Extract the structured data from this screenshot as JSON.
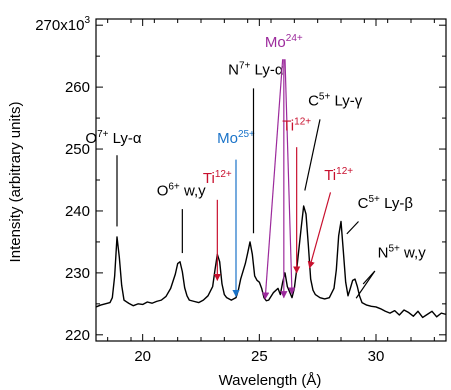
{
  "chart_data": {
    "type": "line",
    "title": "",
    "xlabel": "Wavelength (Å)",
    "ylabel": "Intensity (arbitrary units)",
    "xlim": [
      18.0,
      33.0
    ],
    "ylim": [
      219,
      271
    ],
    "grid": false,
    "legend": "none",
    "x_ticks": [
      20,
      25,
      30
    ],
    "x_tick_labels": [
      "20",
      "25",
      "30"
    ],
    "y_ticks": [
      220,
      230,
      240,
      250,
      260,
      270
    ],
    "y_tick_labels": [
      "220",
      "230",
      "240",
      "250",
      "260",
      "270x10"
    ],
    "y_tick_exponent": "3",
    "series": [
      {
        "color": "#000000",
        "x": [
          18.0,
          18.2,
          18.4,
          18.6,
          18.7,
          18.8,
          18.9,
          19.0,
          19.1,
          19.2,
          19.4,
          19.6,
          19.8,
          20.0,
          20.2,
          20.4,
          20.6,
          20.8,
          21.0,
          21.2,
          21.4,
          21.5,
          21.6,
          21.7,
          21.8,
          21.9,
          22.0,
          22.2,
          22.4,
          22.6,
          22.8,
          23.0,
          23.1,
          23.2,
          23.3,
          23.4,
          23.5,
          23.6,
          23.8,
          24.0,
          24.1,
          24.2,
          24.4,
          24.5,
          24.6,
          24.7,
          24.8,
          24.9,
          25.0,
          25.1,
          25.2,
          25.3,
          25.4,
          25.6,
          25.8,
          25.9,
          26.0,
          26.1,
          26.2,
          26.4,
          26.5,
          26.6,
          26.7,
          26.8,
          26.9,
          27.0,
          27.1,
          27.2,
          27.3,
          27.4,
          27.6,
          27.8,
          28.0,
          28.2,
          28.3,
          28.4,
          28.5,
          28.6,
          28.7,
          28.8,
          28.9,
          29.0,
          29.1,
          29.2,
          29.3,
          29.4,
          29.6,
          29.8,
          30.0,
          30.2,
          30.4,
          30.6,
          30.8,
          31.0,
          31.2,
          31.4,
          31.6,
          31.8,
          32.0,
          32.2,
          32.4,
          32.6,
          32.8,
          33.0
        ],
        "y": [
          224.5,
          224.8,
          225.0,
          225.2,
          226.0,
          229.5,
          235.8,
          232.5,
          228.0,
          225.6,
          225.1,
          224.7,
          225.0,
          224.9,
          225.3,
          225.1,
          225.4,
          225.6,
          226.2,
          227.5,
          229.8,
          231.5,
          231.8,
          230.2,
          227.6,
          226.3,
          225.6,
          225.4,
          225.2,
          225.6,
          226.3,
          227.8,
          230.5,
          233.0,
          231.8,
          228.2,
          226.5,
          226.0,
          225.6,
          226.0,
          227.2,
          229.0,
          231.5,
          233.2,
          235.0,
          233.0,
          229.5,
          228.8,
          228.5,
          227.5,
          226.0,
          225.5,
          225.6,
          226.8,
          227.5,
          226.5,
          228.5,
          230.0,
          227.8,
          226.0,
          227.5,
          230.5,
          234.0,
          237.5,
          240.8,
          239.5,
          234.5,
          229.0,
          227.2,
          226.5,
          226.0,
          225.8,
          226.0,
          227.5,
          230.5,
          236.0,
          238.3,
          233.5,
          228.5,
          226.3,
          227.5,
          228.8,
          229.0,
          227.8,
          226.2,
          225.2,
          224.8,
          224.6,
          224.5,
          224.2,
          223.8,
          223.5,
          223.9,
          223.2,
          224.0,
          223.6,
          223.0,
          223.8,
          222.8,
          223.3,
          223.8,
          222.9,
          223.5,
          223.3
        ]
      }
    ],
    "annotations": [
      {
        "label": "O",
        "sup": "7+",
        "rest": " Ly-α",
        "color": "#000000",
        "line_color": "#000000",
        "arrow": false,
        "text_x": 18.75,
        "text_y": 251.0,
        "x1": 18.9,
        "y1": 249.0,
        "x2": 18.9,
        "y2": 237.5
      },
      {
        "label": "O",
        "sup": "6+",
        "rest": " w,y",
        "color": "#000000",
        "line_color": "#000000",
        "arrow": false,
        "text_x": 21.65,
        "text_y": 242.5,
        "x1": 21.7,
        "y1": 240.3,
        "x2": 21.7,
        "y2": 233.2
      },
      {
        "label": "Ti",
        "sup": "12+",
        "rest": "",
        "color": "#c8102e",
        "line_color": "#c8102e",
        "arrow": true,
        "text_x": 23.2,
        "text_y": 244.5,
        "x1": 23.2,
        "y1": 241.8,
        "x2": 23.2,
        "y2": 228.8
      },
      {
        "label": "Mo",
        "sup": "25+",
        "rest": "",
        "color": "#1a73c8",
        "line_color": "#1a73c8",
        "arrow": true,
        "text_x": 24.0,
        "text_y": 251.0,
        "x1": 24.0,
        "y1": 248.3,
        "x2": 24.0,
        "y2": 226.2
      },
      {
        "label": "N",
        "sup": "7+",
        "rest": " Ly-α",
        "color": "#000000",
        "line_color": "#000000",
        "arrow": false,
        "text_x": 24.85,
        "text_y": 262.0,
        "x1": 24.75,
        "y1": 259.8,
        "x2": 24.75,
        "y2": 236.4
      },
      {
        "label": "Mo",
        "sup": "24+",
        "rest": "",
        "color": "#9c2a9c",
        "line_color": "#9c2a9c",
        "arrow": false,
        "text_x": 26.05,
        "text_y": 266.5,
        "x1": null,
        "y1": null,
        "x2": null,
        "y2": null
      },
      {
        "label": "",
        "sup": "",
        "rest": "",
        "color": "#9c2a9c",
        "line_color": "#9c2a9c",
        "arrow": true,
        "text_x": null,
        "text_y": null,
        "x1": 26.0,
        "y1": 264.5,
        "x2": 25.25,
        "y2": 225.8
      },
      {
        "label": "",
        "sup": "",
        "rest": "",
        "color": "#9c2a9c",
        "line_color": "#9c2a9c",
        "arrow": true,
        "text_x": null,
        "text_y": null,
        "x1": 26.05,
        "y1": 264.5,
        "x2": 26.05,
        "y2": 226.0
      },
      {
        "label": "",
        "sup": "",
        "rest": "",
        "color": "#9c2a9c",
        "line_color": "#9c2a9c",
        "arrow": true,
        "text_x": null,
        "text_y": null,
        "x1": 26.1,
        "y1": 264.5,
        "x2": 26.4,
        "y2": 226.6
      },
      {
        "label": "Ti",
        "sup": "12+",
        "rest": "",
        "color": "#c8102e",
        "line_color": "#c8102e",
        "arrow": true,
        "text_x": 26.6,
        "text_y": 253.0,
        "x1": 26.6,
        "y1": 250.3,
        "x2": 26.6,
        "y2": 230.0
      },
      {
        "label": "Ti",
        "sup": "12+",
        "rest": "",
        "color": "#c8102e",
        "line_color": "#c8102e",
        "arrow": true,
        "text_x": 28.4,
        "text_y": 245.0,
        "x1": 28.05,
        "y1": 243.0,
        "x2": 27.15,
        "y2": 230.8
      },
      {
        "label": "C",
        "sup": "5+",
        "rest": " Ly-γ",
        "color": "#000000",
        "line_color": "#000000",
        "arrow": false,
        "text_x": 28.25,
        "text_y": 257.0,
        "x1": 27.6,
        "y1": 254.8,
        "x2": 26.95,
        "y2": 243.3
      },
      {
        "label": "C",
        "sup": "5+",
        "rest": " Ly-β",
        "color": "#000000",
        "line_color": "#000000",
        "arrow": false,
        "text_x": 30.4,
        "text_y": 240.5,
        "x1": 29.25,
        "y1": 238.3,
        "x2": 28.75,
        "y2": 236.3
      },
      {
        "label": "N",
        "sup": "5+",
        "rest": " w,y",
        "color": "#000000",
        "line_color": "#000000",
        "arrow": false,
        "text_x": 31.1,
        "text_y": 232.5,
        "x1": 29.95,
        "y1": 230.3,
        "x2": 29.15,
        "y2": 225.9
      },
      {
        "label": "",
        "sup": "",
        "rest": "",
        "color": "#000000",
        "line_color": "#000000",
        "arrow": false,
        "text_x": null,
        "text_y": null,
        "x1": 29.95,
        "y1": 230.3,
        "x2": 29.45,
        "y2": 228.2
      }
    ]
  }
}
